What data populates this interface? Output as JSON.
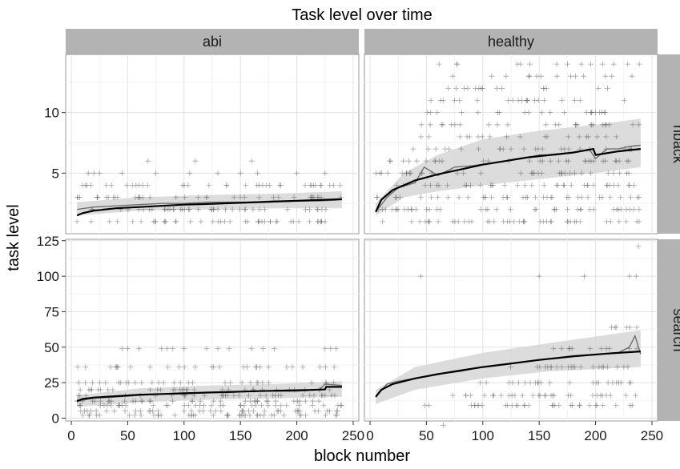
{
  "chart_data": {
    "type": "scatter",
    "title": "Task level over time",
    "xlabel": "block number",
    "ylabel": "task level",
    "facet_columns": [
      "abi",
      "healthy"
    ],
    "facet_rows": [
      "nback",
      "search"
    ],
    "x_ticks": [
      0,
      50,
      100,
      150,
      200,
      250
    ],
    "x_tick_labels": [
      "0",
      "50",
      "100",
      "150",
      "200",
      "250"
    ],
    "xlim": [
      -5,
      255
    ],
    "rows": {
      "nback": {
        "ylim": [
          0,
          14.8
        ],
        "y_ticks": [
          5,
          10
        ],
        "y_tick_labels": [
          "5",
          "10"
        ]
      },
      "search": {
        "ylim": [
          -2,
          126
        ],
        "y_ticks": [
          0,
          25,
          50,
          75,
          100,
          125
        ],
        "y_tick_labels": [
          "0",
          "25",
          "50",
          "75",
          "100",
          "125"
        ]
      }
    },
    "grid": true,
    "marker": "plus",
    "panels": [
      {
        "row": "nback",
        "col": "abi",
        "point_levels": [
          1,
          2,
          3,
          4
        ],
        "point_x_range": [
          5,
          240
        ],
        "outliers": [
          [
            15,
            5
          ],
          [
            20,
            5
          ],
          [
            25,
            5
          ],
          [
            45,
            5
          ],
          [
            68,
            6
          ],
          [
            75,
            5
          ],
          [
            105,
            5
          ],
          [
            110,
            6
          ],
          [
            130,
            5
          ],
          [
            150,
            5
          ],
          [
            160,
            6
          ],
          [
            165,
            5
          ],
          [
            200,
            5
          ],
          [
            225,
            5
          ]
        ],
        "mean_line": [
          [
            5,
            2
          ],
          [
            20,
            2.2
          ],
          [
            40,
            2.3
          ],
          [
            60,
            2.4
          ],
          [
            80,
            2.5
          ],
          [
            100,
            2.5
          ],
          [
            120,
            2.6
          ],
          [
            140,
            2.6
          ],
          [
            160,
            2.6
          ],
          [
            180,
            2.7
          ],
          [
            200,
            2.7
          ],
          [
            220,
            2.7
          ],
          [
            240,
            2.8
          ]
        ],
        "band": [
          [
            5,
            1.5,
            2.6
          ],
          [
            60,
            1.9,
            3
          ],
          [
            120,
            2,
            3.2
          ],
          [
            180,
            2.1,
            3.3
          ],
          [
            240,
            2.1,
            3.5
          ]
        ],
        "fit": [
          [
            5,
            1.5
          ],
          [
            10,
            1.7
          ],
          [
            20,
            1.9
          ],
          [
            40,
            2.1
          ],
          [
            60,
            2.2
          ],
          [
            80,
            2.3
          ],
          [
            100,
            2.4
          ],
          [
            120,
            2.45
          ],
          [
            150,
            2.55
          ],
          [
            180,
            2.65
          ],
          [
            210,
            2.75
          ],
          [
            240,
            2.85
          ]
        ]
      },
      {
        "row": "nback",
        "col": "healthy",
        "point_levels": [
          1,
          2,
          3,
          4,
          5,
          6,
          7,
          8,
          9,
          10,
          11,
          12,
          13,
          14
        ],
        "point_x_range": [
          5,
          240
        ],
        "outliers": [],
        "mean_line": [
          [
            5,
            1.8
          ],
          [
            15,
            3
          ],
          [
            25,
            3.8
          ],
          [
            40,
            4.2
          ],
          [
            48,
            5.5
          ],
          [
            60,
            4.8
          ],
          [
            75,
            5.5
          ],
          [
            90,
            5.6
          ],
          [
            105,
            5.8
          ],
          [
            120,
            6
          ],
          [
            135,
            6.2
          ],
          [
            150,
            6.5
          ],
          [
            165,
            6.5
          ],
          [
            180,
            6.7
          ],
          [
            195,
            6.9
          ],
          [
            200,
            6.2
          ],
          [
            210,
            7
          ],
          [
            220,
            7
          ],
          [
            230,
            7.2
          ],
          [
            240,
            7.3
          ]
        ],
        "band": [
          [
            5,
            1.5,
            2.5
          ],
          [
            30,
            3,
            5
          ],
          [
            60,
            3.5,
            6.5
          ],
          [
            100,
            4,
            7.8
          ],
          [
            150,
            4.5,
            8.5
          ],
          [
            200,
            5,
            9
          ],
          [
            240,
            5.5,
            9.5
          ]
        ],
        "fit": [
          [
            5,
            1.8
          ],
          [
            10,
            2.8
          ],
          [
            20,
            3.6
          ],
          [
            40,
            4.4
          ],
          [
            60,
            4.9
          ],
          [
            80,
            5.3
          ],
          [
            100,
            5.7
          ],
          [
            120,
            6
          ],
          [
            140,
            6.3
          ],
          [
            160,
            6.5
          ],
          [
            180,
            6.7
          ],
          [
            198,
            7
          ],
          [
            200,
            6.5
          ],
          [
            220,
            6.8
          ],
          [
            240,
            7
          ]
        ]
      },
      {
        "row": "search",
        "col": "abi",
        "point_levels": [
          2,
          5,
          9,
          12,
          16,
          20,
          25,
          36
        ],
        "point_x_range": [
          5,
          240
        ],
        "outliers": [
          [
            45,
            49
          ],
          [
            50,
            49
          ],
          [
            60,
            49
          ],
          [
            80,
            49
          ],
          [
            85,
            49
          ],
          [
            90,
            49
          ],
          [
            100,
            49
          ],
          [
            120,
            49
          ],
          [
            130,
            49
          ],
          [
            140,
            49
          ],
          [
            160,
            49
          ],
          [
            170,
            49
          ],
          [
            180,
            49
          ],
          [
            225,
            49
          ],
          [
            230,
            49
          ],
          [
            235,
            49
          ]
        ],
        "mean_line": [
          [
            5,
            12
          ],
          [
            20,
            14
          ],
          [
            40,
            15
          ],
          [
            60,
            16
          ],
          [
            80,
            17
          ],
          [
            100,
            17
          ],
          [
            120,
            18
          ],
          [
            140,
            18
          ],
          [
            160,
            19
          ],
          [
            180,
            19
          ],
          [
            200,
            19
          ],
          [
            220,
            20
          ],
          [
            225,
            24
          ],
          [
            240,
            23
          ]
        ],
        "band": [
          [
            5,
            8,
            16
          ],
          [
            60,
            11,
            21
          ],
          [
            120,
            13,
            23
          ],
          [
            180,
            14,
            24
          ],
          [
            240,
            15,
            26
          ]
        ],
        "fit": [
          [
            5,
            12
          ],
          [
            10,
            13.5
          ],
          [
            20,
            14.5
          ],
          [
            40,
            15.5
          ],
          [
            60,
            16.5
          ],
          [
            80,
            17
          ],
          [
            100,
            17.5
          ],
          [
            120,
            18
          ],
          [
            150,
            18.7
          ],
          [
            180,
            19.3
          ],
          [
            210,
            19.8
          ],
          [
            225,
            20.2
          ],
          [
            226,
            22
          ],
          [
            240,
            22
          ]
        ]
      },
      {
        "row": "search",
        "col": "healthy",
        "point_levels": [
          9,
          16,
          25,
          36,
          49,
          64,
          81
        ],
        "point_x_range": [
          5,
          240
        ],
        "outliers": [
          [
            45,
            100
          ],
          [
            150,
            100
          ],
          [
            190,
            100
          ],
          [
            230,
            100
          ],
          [
            236,
            100
          ],
          [
            238,
            121
          ],
          [
            65,
            -5
          ]
        ],
        "mean_line": [
          [
            5,
            15
          ],
          [
            15,
            24
          ],
          [
            25,
            26
          ],
          [
            40,
            28
          ],
          [
            60,
            31
          ],
          [
            80,
            33
          ],
          [
            100,
            36
          ],
          [
            120,
            38
          ],
          [
            140,
            40
          ],
          [
            160,
            42
          ],
          [
            180,
            44
          ],
          [
            200,
            45
          ],
          [
            220,
            46
          ],
          [
            230,
            50
          ],
          [
            235,
            58
          ],
          [
            240,
            45
          ]
        ],
        "band": [
          [
            5,
            10,
            20
          ],
          [
            40,
            20,
            36
          ],
          [
            100,
            28,
            46
          ],
          [
            160,
            33,
            53
          ],
          [
            240,
            36,
            62
          ]
        ],
        "fit": [
          [
            5,
            15
          ],
          [
            10,
            20
          ],
          [
            20,
            24
          ],
          [
            40,
            28
          ],
          [
            60,
            31
          ],
          [
            80,
            33.5
          ],
          [
            100,
            36
          ],
          [
            120,
            38
          ],
          [
            150,
            41
          ],
          [
            180,
            43.5
          ],
          [
            210,
            45.5
          ],
          [
            240,
            47
          ]
        ]
      }
    ]
  }
}
